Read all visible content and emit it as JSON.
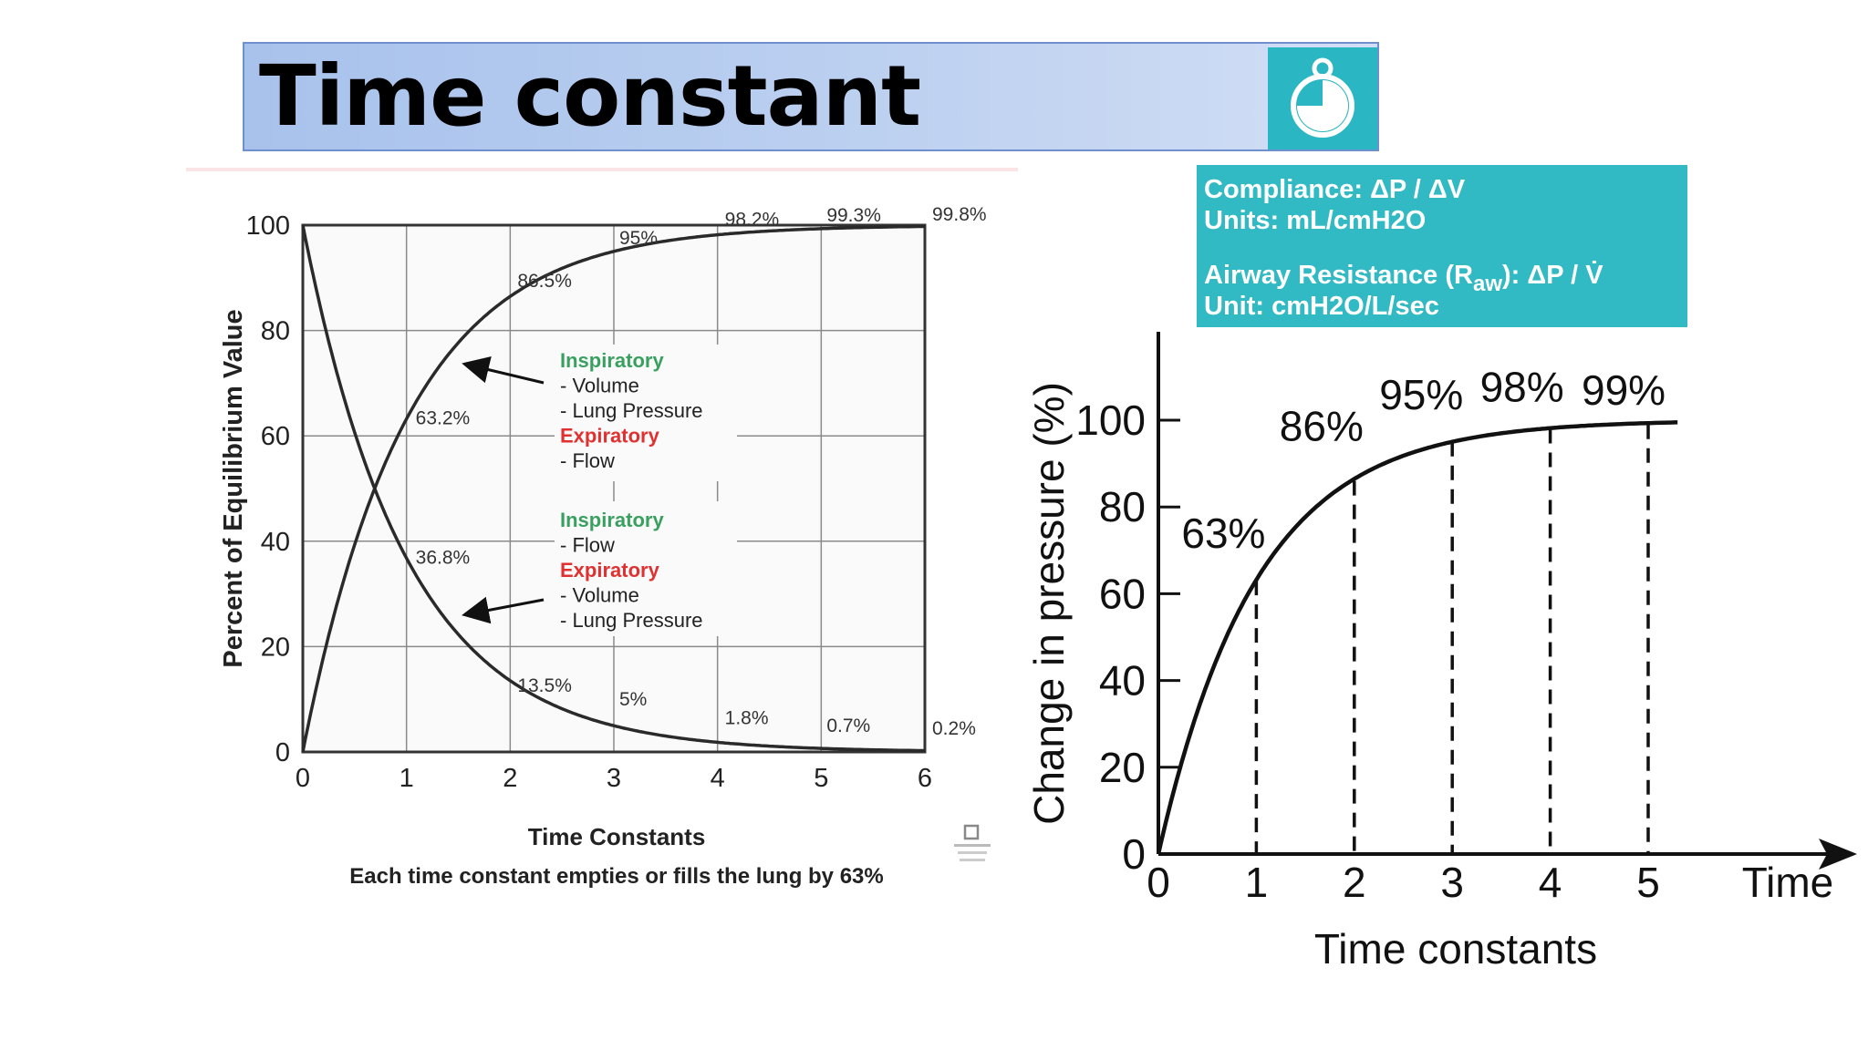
{
  "title": "Time constant",
  "info_box": {
    "compliance": "Compliance: ΔP / ΔV",
    "compliance_units": "Units: mL/cmH2O",
    "resistance_prefix": "Airway Resistance (R",
    "resistance_sub": "aw",
    "resistance_suffix": "): ΔP / V̇",
    "resistance_units": "Unit: cmH2O/L/sec"
  },
  "chart_data": [
    {
      "type": "line",
      "xlabel": "Time Constants",
      "ylabel": "Percent of Equilibrium Value",
      "caption": "Each time constant empties or fills the lung by 63%",
      "xlim": [
        0,
        6
      ],
      "ylim": [
        0,
        100
      ],
      "x_ticks": [
        "0",
        "1",
        "2",
        "3",
        "4",
        "5",
        "6"
      ],
      "y_ticks": [
        "0",
        "20",
        "40",
        "60",
        "80",
        "100"
      ],
      "grid": true,
      "series": [
        {
          "x": [
            0,
            1,
            2,
            3,
            4,
            5,
            6
          ],
          "values": [
            0,
            63.2,
            86.5,
            95,
            98.2,
            99.3,
            99.8
          ],
          "labels": [
            "",
            "63.2%",
            "86.5%",
            "95%",
            "98.2%",
            "99.3%",
            "99.8%"
          ]
        },
        {
          "x": [
            0,
            1,
            2,
            3,
            4,
            5,
            6
          ],
          "values": [
            100,
            36.8,
            13.5,
            5,
            1.8,
            0.7,
            0.2
          ],
          "labels": [
            "",
            "36.8%",
            "13.5%",
            "5%",
            "1.8%",
            "0.7%",
            "0.2%"
          ]
        }
      ],
      "legend_rise": [
        {
          "text": "Inspiratory",
          "color": "#3aa060",
          "bold": true
        },
        {
          "text": "- Volume",
          "color": "#222222",
          "bold": false
        },
        {
          "text": "- Lung Pressure",
          "color": "#222222",
          "bold": false
        },
        {
          "text": "Expiratory",
          "color": "#e03030",
          "bold": true
        },
        {
          "text": "- Flow",
          "color": "#222222",
          "bold": false
        }
      ],
      "legend_fall": [
        {
          "text": "Inspiratory",
          "color": "#3aa060",
          "bold": true
        },
        {
          "text": "- Flow",
          "color": "#222222",
          "bold": false
        },
        {
          "text": "Expiratory",
          "color": "#e03030",
          "bold": true
        },
        {
          "text": "- Volume",
          "color": "#222222",
          "bold": false
        },
        {
          "text": "- Lung Pressure",
          "color": "#222222",
          "bold": false
        }
      ]
    },
    {
      "type": "line",
      "xlabel": "Time constants",
      "ylabel": "Change in pressure (%)",
      "x_axis_end_label": "Time",
      "xlim": [
        0,
        5
      ],
      "ylim": [
        0,
        100
      ],
      "x_ticks": [
        "0",
        "1",
        "2",
        "3",
        "4",
        "5"
      ],
      "y_ticks": [
        "0",
        "20",
        "40",
        "60",
        "80",
        "100"
      ],
      "grid": false,
      "series": [
        {
          "x": [
            0,
            1,
            2,
            3,
            4,
            5
          ],
          "values": [
            0,
            63,
            86,
            95,
            98,
            99
          ],
          "labels": [
            "",
            "63%",
            "86%",
            "95%",
            "98%",
            "99%"
          ]
        }
      ]
    }
  ],
  "colors": {
    "title_bar": "#b4caef",
    "timer_box": "#2ab6c2",
    "info_box": "#31b9c4",
    "legend_green": "#3aa060",
    "legend_red": "#e03030"
  }
}
